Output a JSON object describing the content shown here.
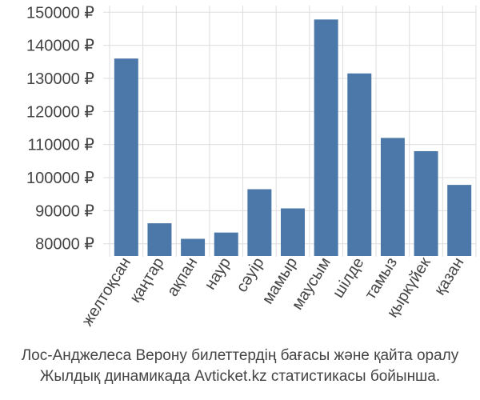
{
  "chart_data": {
    "type": "bar",
    "categories": [
      "желтоқсан",
      "қаңтар",
      "ақпан",
      "наур",
      "сәуір",
      "мамыр",
      "маусым",
      "шілде",
      "тамыз",
      "қыркүйек",
      "қазан"
    ],
    "values": [
      136000,
      86200,
      81500,
      83400,
      96500,
      90700,
      147800,
      131500,
      112000,
      108000,
      97800
    ],
    "ylim": [
      78000,
      152000
    ],
    "yticks": [
      80000,
      90000,
      100000,
      110000,
      120000,
      130000,
      140000,
      150000
    ],
    "ytick_labels": [
      "80000 ₽",
      "90000 ₽",
      "100000 ₽",
      "110000 ₽",
      "120000 ₽",
      "130000 ₽",
      "140000 ₽",
      "150000 ₽"
    ],
    "grid": true,
    "bar_color": "#4b78a8",
    "grid_color": "#dddddd",
    "caption_line1": "Лос-Анджелеса Верону билеттердің бағасы және қайта оралу",
    "caption_line2": "Жылдық динамикада Avticket.kz статистикасы бойынша."
  }
}
